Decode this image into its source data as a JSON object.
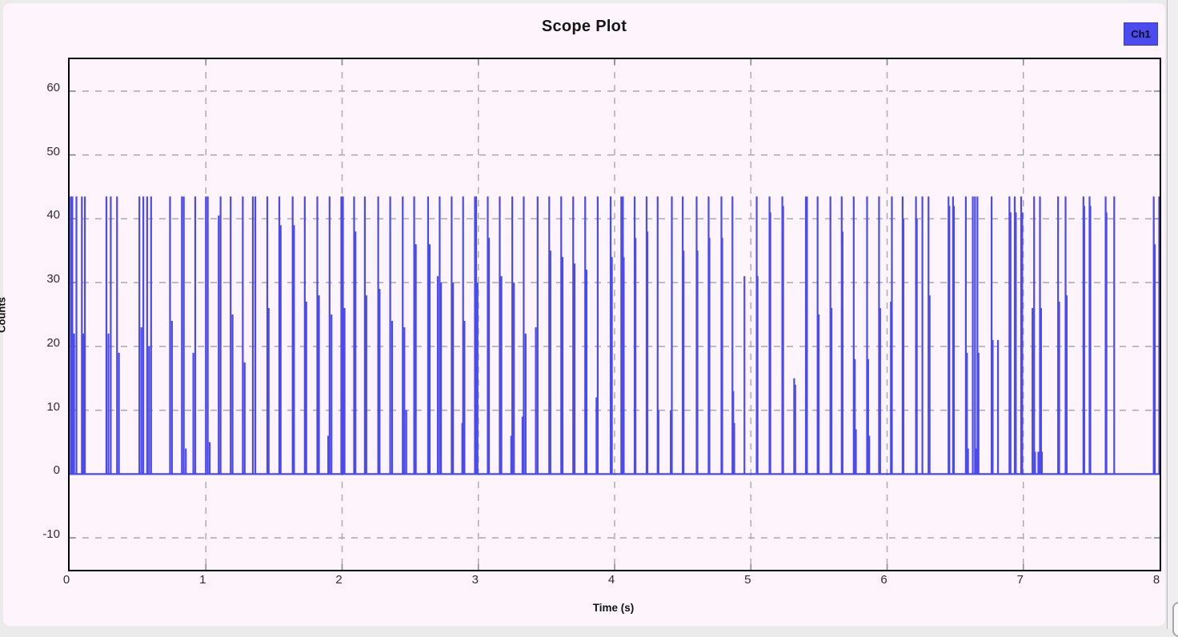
{
  "header": {
    "title": "Scope Plot"
  },
  "legend": {
    "label": "Ch1",
    "color": "#4b4bef",
    "text_color": "#0d0d1a"
  },
  "axes": {
    "xlabel": "Time (s)",
    "ylabel": "Counts"
  },
  "colors": {
    "figure_background": "#fdf4fc",
    "outer_margin": "#ebebeb",
    "plot_border": "#000000",
    "grid": "#a9a9a9",
    "trace": "#4a4aee",
    "tick_text": "#2e2e2e",
    "side_strip": "#f0eef0"
  },
  "chart_data": {
    "type": "line",
    "title": "Scope Plot",
    "xlabel": "Time (s)",
    "ylabel": "Counts",
    "xlim": [
      0,
      8
    ],
    "ylim": [
      -15,
      65
    ],
    "xticks": [
      0,
      1,
      2,
      3,
      4,
      5,
      6,
      7,
      8
    ],
    "yticks": [
      -10,
      0,
      10,
      20,
      30,
      40,
      50,
      60
    ],
    "grid": "dashed",
    "legend_position": "top-right",
    "baseline": 0,
    "series": [
      {
        "name": "Ch1",
        "style": "pulse-train (narrow spikes rising from 0 baseline; flat-topped spikes saturate near 43.5 counts)",
        "spikes": [
          [
            0.008,
            43.5
          ],
          [
            0.02,
            43.5
          ],
          [
            0.033,
            22
          ],
          [
            0.05,
            43.5
          ],
          [
            0.09,
            43.5
          ],
          [
            0.1,
            22
          ],
          [
            0.112,
            43.5
          ],
          [
            0.27,
            43.5
          ],
          [
            0.285,
            22
          ],
          [
            0.302,
            43.5
          ],
          [
            0.348,
            43.5
          ],
          [
            0.362,
            19
          ],
          [
            0.512,
            43.5
          ],
          [
            0.527,
            23
          ],
          [
            0.541,
            43.5
          ],
          [
            0.569,
            43.5
          ],
          [
            0.583,
            20
          ],
          [
            0.598,
            43.5
          ],
          [
            0.737,
            43.5
          ],
          [
            0.751,
            24
          ],
          [
            0.824,
            43.5
          ],
          [
            0.838,
            43.5
          ],
          [
            0.853,
            4
          ],
          [
            0.908,
            19
          ],
          [
            0.922,
            43.5
          ],
          [
            1.0,
            43.5
          ],
          [
            1.014,
            43.5
          ],
          [
            1.028,
            5
          ],
          [
            1.094,
            40.5
          ],
          [
            1.108,
            43.5
          ],
          [
            1.182,
            43.5
          ],
          [
            1.196,
            25
          ],
          [
            1.271,
            43.5
          ],
          [
            1.285,
            17.5
          ],
          [
            1.345,
            43.5
          ],
          [
            1.363,
            43.5
          ],
          [
            1.451,
            43.5
          ],
          [
            1.461,
            26
          ],
          [
            1.539,
            43.5
          ],
          [
            1.549,
            39
          ],
          [
            1.637,
            43.5
          ],
          [
            1.647,
            39
          ],
          [
            1.726,
            43.5
          ],
          [
            1.737,
            27
          ],
          [
            1.818,
            43.5
          ],
          [
            1.83,
            28
          ],
          [
            1.898,
            6
          ],
          [
            1.908,
            43.5
          ],
          [
            1.922,
            25
          ],
          [
            1.994,
            43.5
          ],
          [
            2.006,
            43.5
          ],
          [
            2.018,
            26
          ],
          [
            2.088,
            43.5
          ],
          [
            2.098,
            38
          ],
          [
            2.167,
            43.5
          ],
          [
            2.178,
            28
          ],
          [
            2.265,
            43.5
          ],
          [
            2.275,
            29
          ],
          [
            2.353,
            43.5
          ],
          [
            2.367,
            24
          ],
          [
            2.445,
            43.5
          ],
          [
            2.457,
            23
          ],
          [
            2.471,
            10
          ],
          [
            2.529,
            43.5
          ],
          [
            2.541,
            36
          ],
          [
            2.631,
            43.5
          ],
          [
            2.643,
            36
          ],
          [
            2.702,
            31
          ],
          [
            2.716,
            43.5
          ],
          [
            2.726,
            30
          ],
          [
            2.804,
            43.5
          ],
          [
            2.814,
            30
          ],
          [
            2.882,
            8
          ],
          [
            2.888,
            43.5
          ],
          [
            2.898,
            24
          ],
          [
            2.975,
            43.5
          ],
          [
            2.984,
            43.5
          ],
          [
            2.994,
            30
          ],
          [
            3.069,
            43.5
          ],
          [
            3.078,
            37
          ],
          [
            3.157,
            43.5
          ],
          [
            3.169,
            31
          ],
          [
            3.241,
            6
          ],
          [
            3.249,
            43.5
          ],
          [
            3.261,
            30
          ],
          [
            3.324,
            9
          ],
          [
            3.333,
            43.5
          ],
          [
            3.347,
            22
          ],
          [
            3.422,
            23
          ],
          [
            3.435,
            43.5
          ],
          [
            3.52,
            43.5
          ],
          [
            3.529,
            35
          ],
          [
            3.608,
            43.5
          ],
          [
            3.618,
            34
          ],
          [
            3.696,
            43.5
          ],
          [
            3.706,
            33
          ],
          [
            3.784,
            43.5
          ],
          [
            3.794,
            32
          ],
          [
            3.867,
            12
          ],
          [
            3.876,
            43.5
          ],
          [
            3.971,
            43.5
          ],
          [
            3.98,
            34
          ],
          [
            4.049,
            43.5
          ],
          [
            4.061,
            43.5
          ],
          [
            4.067,
            34
          ],
          [
            4.147,
            43.5
          ],
          [
            4.153,
            37
          ],
          [
            4.235,
            43.5
          ],
          [
            4.241,
            38
          ],
          [
            4.316,
            43.5
          ],
          [
            4.322,
            10
          ],
          [
            4.412,
            10
          ],
          [
            4.42,
            43.5
          ],
          [
            4.5,
            43.5
          ],
          [
            4.506,
            35
          ],
          [
            4.602,
            43.5
          ],
          [
            4.608,
            35
          ],
          [
            4.69,
            43.5
          ],
          [
            4.696,
            37
          ],
          [
            4.784,
            43.5
          ],
          [
            4.79,
            37
          ],
          [
            4.865,
            43.5
          ],
          [
            4.871,
            13
          ],
          [
            4.878,
            8
          ],
          [
            4.953,
            31
          ],
          [
            5.043,
            43.5
          ],
          [
            5.049,
            31
          ],
          [
            5.137,
            43.5
          ],
          [
            5.143,
            41
          ],
          [
            5.231,
            43.5
          ],
          [
            5.237,
            42
          ],
          [
            5.318,
            15
          ],
          [
            5.326,
            14
          ],
          [
            5.404,
            43.5
          ],
          [
            5.41,
            25
          ],
          [
            5.412,
            43.5
          ],
          [
            5.49,
            43.5
          ],
          [
            5.498,
            25
          ],
          [
            5.584,
            43.5
          ],
          [
            5.592,
            26
          ],
          [
            5.667,
            43.5
          ],
          [
            5.673,
            38
          ],
          [
            5.755,
            43.5
          ],
          [
            5.763,
            18
          ],
          [
            5.771,
            7
          ],
          [
            5.853,
            43.5
          ],
          [
            5.861,
            18
          ],
          [
            5.869,
            6
          ],
          [
            5.941,
            43.5
          ],
          [
            5.949,
            26
          ],
          [
            6.028,
            27
          ],
          [
            6.035,
            43.5
          ],
          [
            6.114,
            43.5
          ],
          [
            6.12,
            40
          ],
          [
            6.212,
            43.5
          ],
          [
            6.218,
            40
          ],
          [
            6.259,
            43.5
          ],
          [
            6.304,
            43.5
          ],
          [
            6.312,
            28
          ],
          [
            6.451,
            43.5
          ],
          [
            6.457,
            42
          ],
          [
            6.484,
            43.5
          ],
          [
            6.49,
            42
          ],
          [
            6.578,
            43.5
          ],
          [
            6.586,
            19
          ],
          [
            6.594,
            4
          ],
          [
            6.629,
            43.5
          ],
          [
            6.645,
            43.5
          ],
          [
            6.652,
            4
          ],
          [
            6.663,
            43.5
          ],
          [
            6.671,
            19
          ],
          [
            6.767,
            43.5
          ],
          [
            6.775,
            21
          ],
          [
            6.814,
            21
          ],
          [
            6.898,
            43.5
          ],
          [
            6.906,
            41
          ],
          [
            6.937,
            43.5
          ],
          [
            6.945,
            41
          ],
          [
            6.984,
            43.5
          ],
          [
            6.992,
            41
          ],
          [
            7.067,
            26
          ],
          [
            7.079,
            43.5
          ],
          [
            7.086,
            3.5
          ],
          [
            7.11,
            3.5
          ],
          [
            7.122,
            43.5
          ],
          [
            7.13,
            26
          ],
          [
            7.136,
            3.5
          ],
          [
            7.255,
            43.5
          ],
          [
            7.263,
            27
          ],
          [
            7.31,
            43.5
          ],
          [
            7.318,
            28
          ],
          [
            7.441,
            43.5
          ],
          [
            7.447,
            42
          ],
          [
            7.486,
            43.5
          ],
          [
            7.492,
            42
          ],
          [
            7.604,
            43.5
          ],
          [
            7.61,
            41
          ],
          [
            7.667,
            43.5
          ],
          [
            7.957,
            43.5
          ],
          [
            7.965,
            36
          ],
          [
            7.997,
            43.5
          ]
        ]
      }
    ]
  }
}
